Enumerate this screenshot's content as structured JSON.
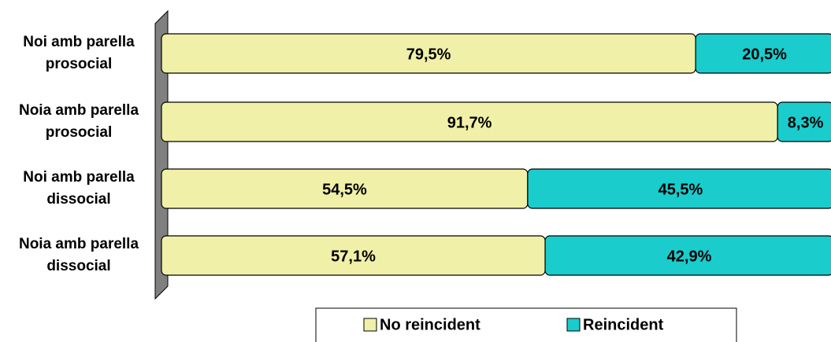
{
  "chart_data": {
    "type": "stacked_bar_horizontal",
    "categories": [
      "Noi amb parella prosocial",
      "Noia amb parella prosocial",
      "Noi amb parella dissocial",
      "Noia amb parella dissocial"
    ],
    "series": [
      {
        "name": "No reincident",
        "color": "#F0F0A8",
        "values": [
          79.5,
          91.7,
          54.5,
          57.1
        ],
        "value_labels": [
          "79,5%",
          "91,7%",
          "54,5%",
          "57,1%"
        ]
      },
      {
        "name": "Reincident",
        "color": "#1ACCCC",
        "values": [
          20.5,
          8.3,
          45.5,
          42.9
        ],
        "value_labels": [
          "20,5%",
          "8,3%",
          "45,5%",
          "42,9%"
        ]
      }
    ],
    "xlim": [
      0,
      100
    ],
    "legend": "bottom"
  }
}
